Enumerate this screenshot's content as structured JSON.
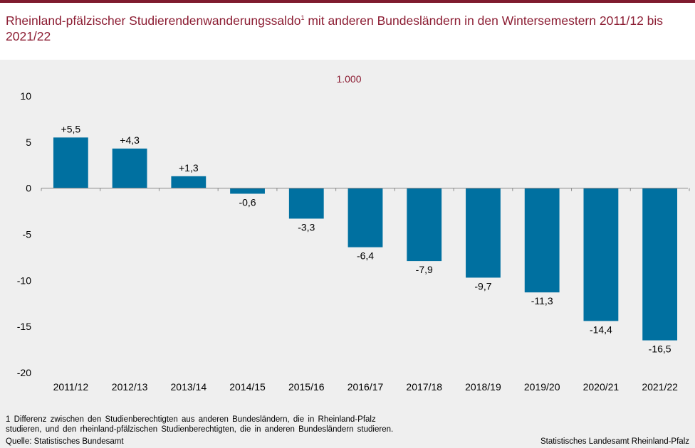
{
  "header": {
    "title_main": "Rheinland-pfälzischer Studierendenwanderungssaldo",
    "title_sup": "1",
    "title_rest": " mit anderen Bundesländern in den Wintersemestern 2011/12 bis 2021/22"
  },
  "footer": {
    "footnote": "1 Differenz zwischen den Studienberechtigten aus anderen Bundesländern, die in Rheinland-Pfalz\nstudieren, und den rheinland-pfälzischen Studienberechtigten, die in anderen Bundesländern studieren.",
    "source": "Quelle: Statistisches Bundesamt",
    "credit": "Statistisches Landesamt Rheinland-Pfalz"
  },
  "chart_data": {
    "type": "bar",
    "unit_label": "1.000",
    "categories": [
      "2011/12",
      "2012/13",
      "2013/14",
      "2014/15",
      "2015/16",
      "2016/17",
      "2017/18",
      "2018/19",
      "2019/20",
      "2020/21",
      "2021/22"
    ],
    "values": [
      5.5,
      4.3,
      1.3,
      -0.6,
      -3.3,
      -6.4,
      -7.9,
      -9.7,
      -11.3,
      -14.4,
      -16.5
    ],
    "data_labels": [
      "+5,5",
      "+4,3",
      "+1,3",
      "-0,6",
      "-3,3",
      "-6,4",
      "-7,9",
      "-9,7",
      "-11,3",
      "-14,4",
      "-16,5"
    ],
    "y_ticks": [
      10,
      5,
      0,
      -5,
      -10,
      -15,
      -20
    ],
    "y_tick_labels": [
      "10",
      "5",
      "0",
      "-5",
      "-10",
      "-15",
      "-20"
    ],
    "ylim": [
      -20,
      10
    ],
    "bar_color": "#0070a0",
    "grid": false,
    "legend": "none"
  }
}
